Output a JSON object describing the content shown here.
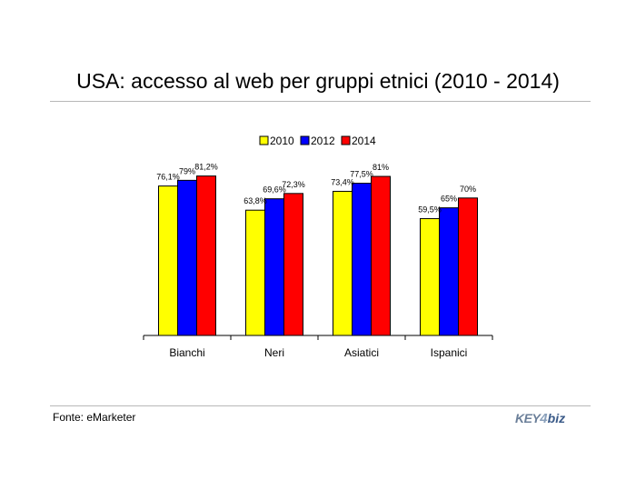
{
  "title": "USA: accesso al web per gruppi etnici (2010 - 2014)",
  "source": "Fonte: eMarketer",
  "logo": {
    "part1": "KEY",
    "part2": "4",
    "part3": "biz"
  },
  "colors": {
    "2010": "#ffff00",
    "2012": "#0000ff",
    "2014": "#ff0000"
  },
  "chart_data": {
    "type": "bar",
    "categories": [
      "Bianchi",
      "Neri",
      "Asiatici",
      "Ispanici"
    ],
    "series": [
      {
        "name": "2010",
        "values": [
          76.1,
          63.8,
          73.4,
          59.5
        ],
        "labels": [
          "76,1%",
          "63,8%",
          "73,4%",
          "59,5%"
        ]
      },
      {
        "name": "2012",
        "values": [
          79,
          69.6,
          77.5,
          65
        ],
        "labels": [
          "79%",
          "69,6%",
          "77,5%",
          "65%"
        ]
      },
      {
        "name": "2014",
        "values": [
          81.2,
          72.3,
          81,
          70
        ],
        "labels": [
          "81,2%",
          "72,3%",
          "81%",
          "70%"
        ]
      }
    ],
    "legend_position": "top-center",
    "ylim": [
      0,
      100
    ],
    "grid": false
  }
}
